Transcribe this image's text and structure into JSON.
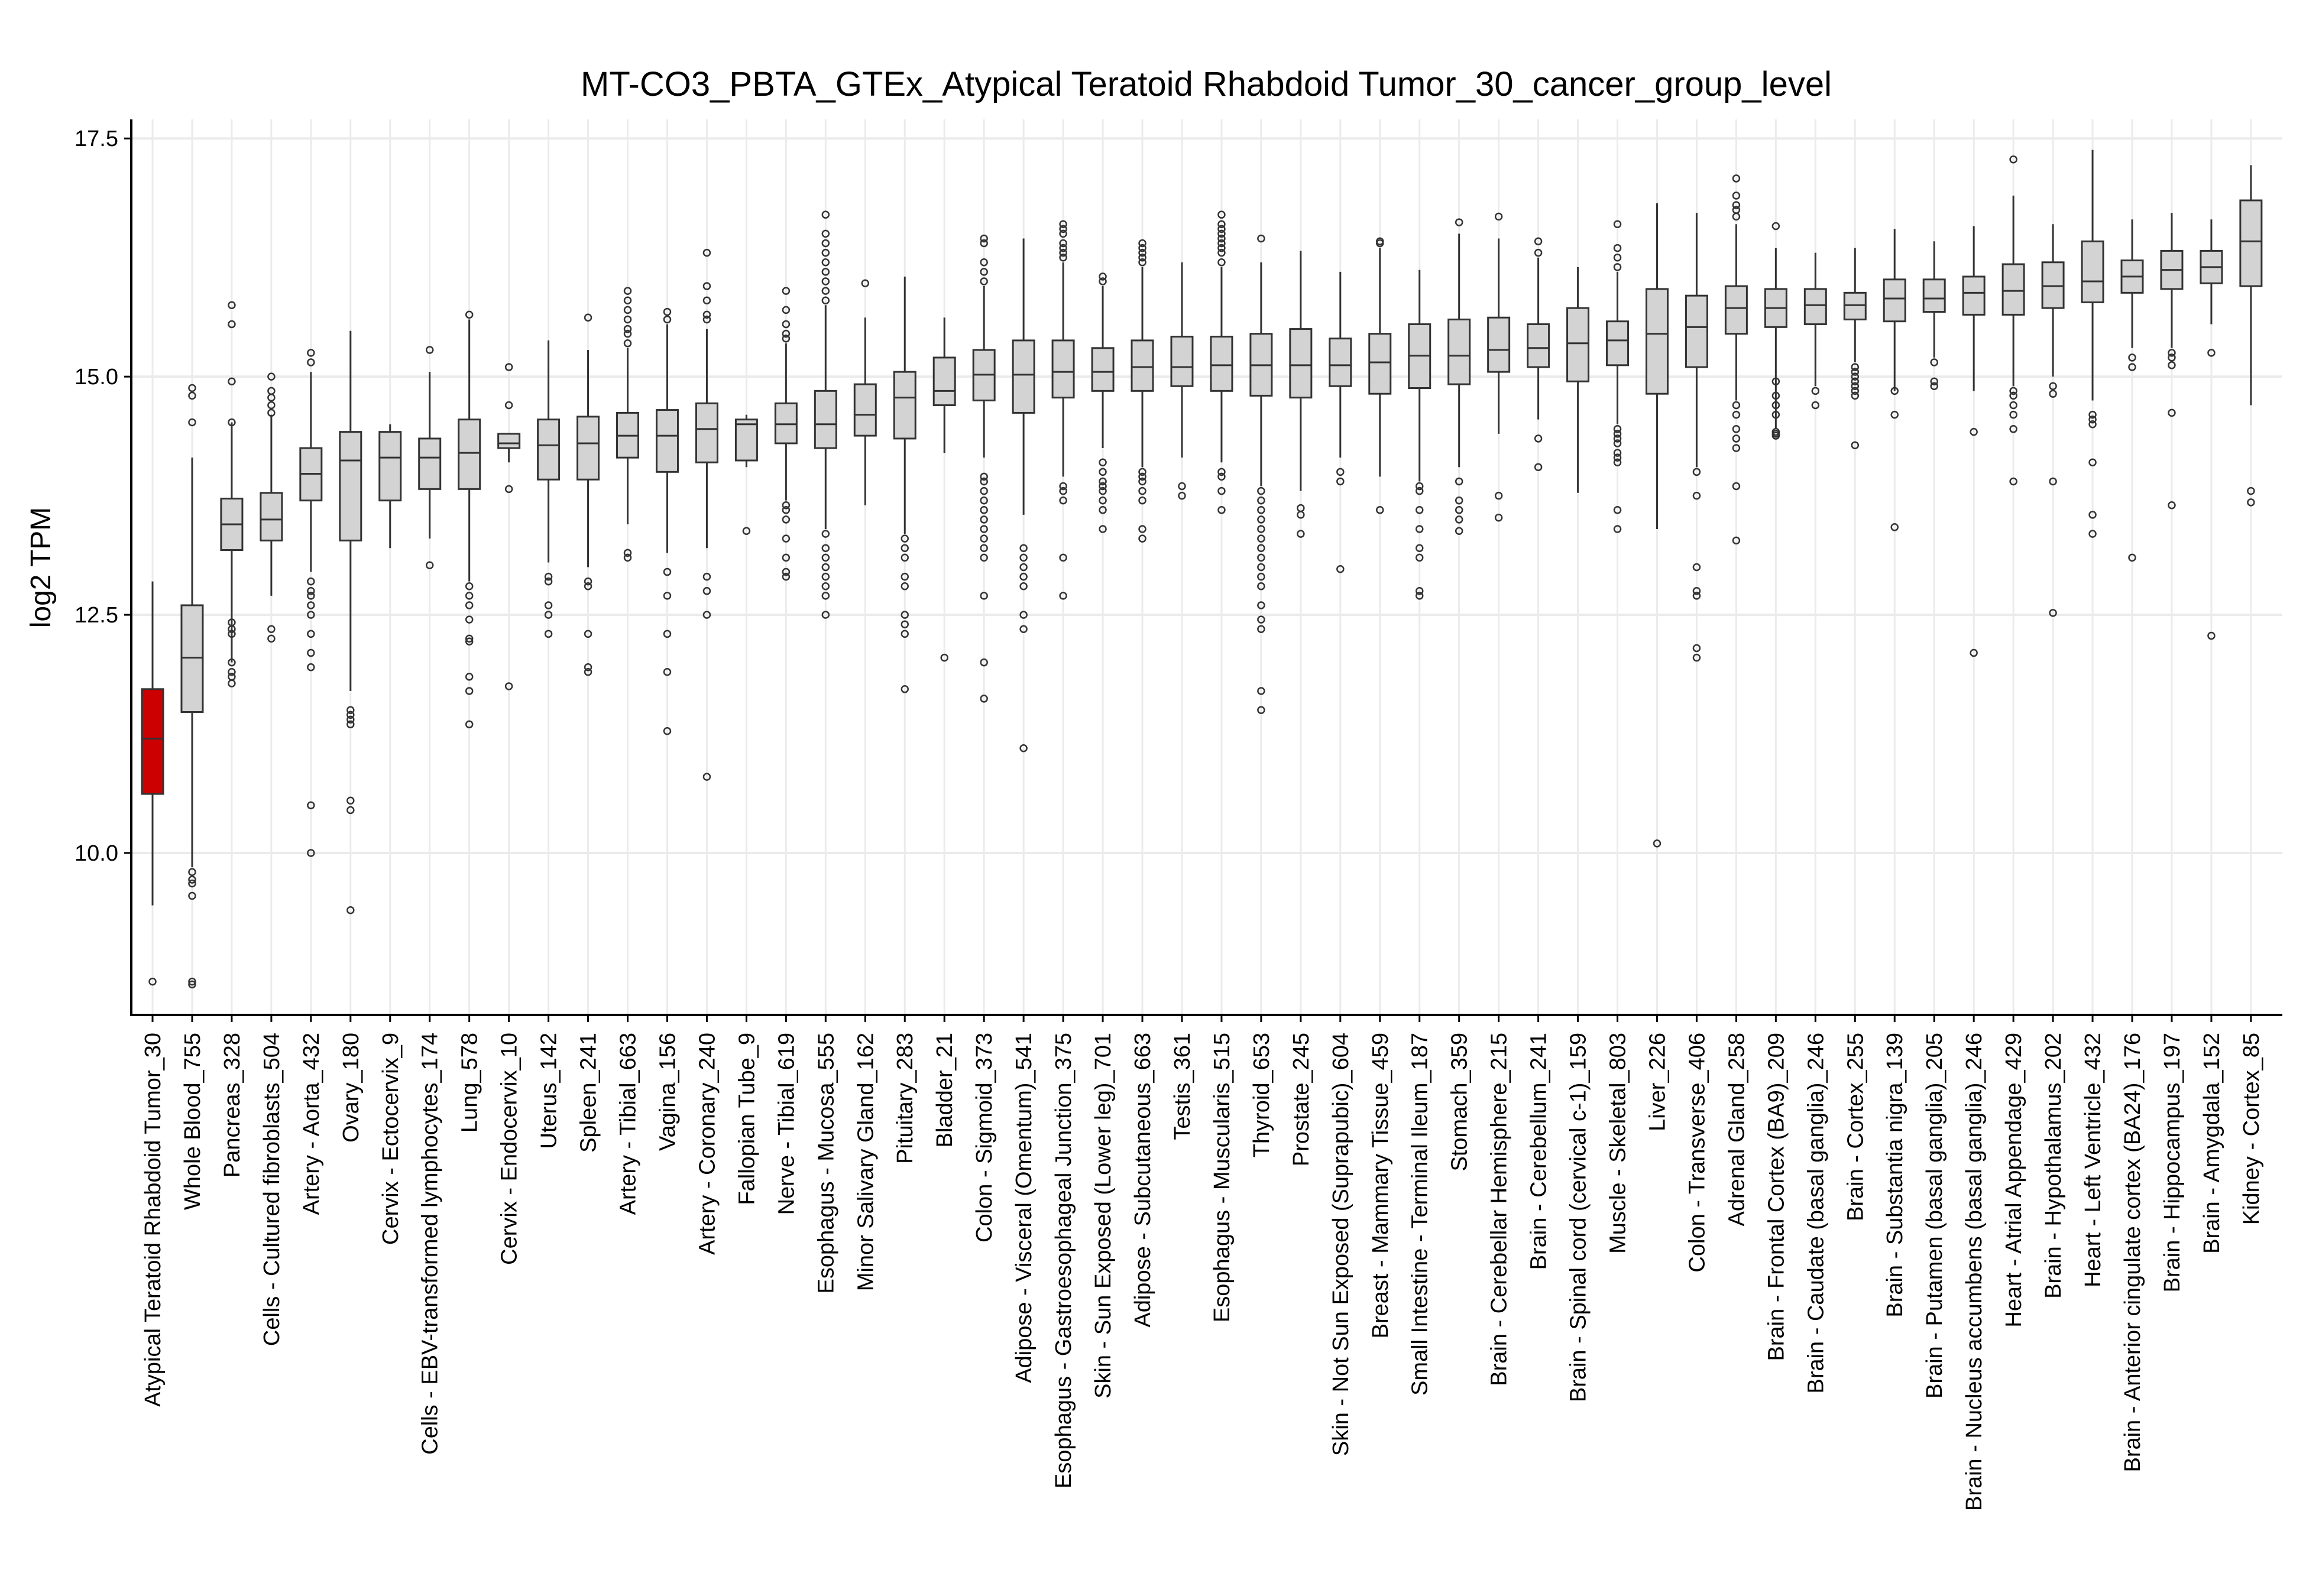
{
  "colors": {
    "box_fill": "#d3d3d3",
    "highlight_fill": "#cc0000",
    "grid": "#ebebeb",
    "stroke": "#333333"
  },
  "chart_data": {
    "type": "box",
    "title": "MT-CO3_PBTA_GTEx_Atypical Teratoid Rhabdoid Tumor_30_cancer_group_level",
    "xlabel": "",
    "ylabel": "log2 TPM",
    "ylim": [
      8.3,
      17.7
    ],
    "yticks": [
      10.0,
      12.5,
      15.0,
      17.5
    ],
    "ytick_labels": [
      "10.0",
      "12.5",
      "15.0",
      "17.5"
    ],
    "grid": true,
    "legend": "none",
    "highlight_index": 0,
    "categories": [
      "Atypical Teratoid Rhabdoid Tumor_30",
      "Whole Blood_755",
      "Pancreas_328",
      "Cells - Cultured fibroblasts_504",
      "Artery - Aorta_432",
      "Ovary_180",
      "Cervix - Ectocervix_9",
      "Cells - EBV-transformed lymphocytes_174",
      "Lung_578",
      "Cervix - Endocervix_10",
      "Uterus_142",
      "Spleen_241",
      "Artery - Tibial_663",
      "Vagina_156",
      "Artery - Coronary_240",
      "Fallopian Tube_9",
      "Nerve - Tibial_619",
      "Esophagus - Mucosa_555",
      "Minor Salivary Gland_162",
      "Pituitary_283",
      "Bladder_21",
      "Colon - Sigmoid_373",
      "Adipose - Visceral (Omentum)_541",
      "Esophagus - Gastroesophageal Junction_375",
      "Skin - Sun Exposed (Lower leg)_701",
      "Adipose - Subcutaneous_663",
      "Testis_361",
      "Esophagus - Muscularis_515",
      "Thyroid_653",
      "Prostate_245",
      "Skin - Not Sun Exposed (Suprapubic)_604",
      "Breast - Mammary Tissue_459",
      "Small Intestine - Terminal Ileum_187",
      "Stomach_359",
      "Brain - Cerebellar Hemisphere_215",
      "Brain - Cerebellum_241",
      "Brain - Spinal cord (cervical c-1)_159",
      "Muscle - Skeletal_803",
      "Liver_226",
      "Colon - Transverse_406",
      "Adrenal Gland_258",
      "Brain - Frontal Cortex (BA9)_209",
      "Brain - Caudate (basal ganglia)_246",
      "Brain - Cortex_255",
      "Brain - Substantia nigra_139",
      "Brain - Putamen (basal ganglia)_205",
      "Brain - Nucleus accumbens (basal ganglia)_246",
      "Heart - Atrial Appendage_429",
      "Brain - Hypothalamus_202",
      "Heart - Left Ventricle_432",
      "Brain - Anterior cingulate cortex (BA24)_176",
      "Brain - Hippocampus_197",
      "Brain - Amygdala_152",
      "Kidney - Cortex_85"
    ],
    "boxes": [
      {
        "whislo": 9.45,
        "q1": 10.62,
        "med": 11.2,
        "q3": 11.72,
        "whishi": 12.85,
        "fliers": [
          8.65
        ]
      },
      {
        "whislo": 9.85,
        "q1": 11.48,
        "med": 12.05,
        "q3": 12.6,
        "whishi": 14.15,
        "fliers": [
          9.8,
          9.72,
          9.68,
          9.55,
          8.65,
          8.62,
          14.52,
          14.8,
          14.88
        ]
      },
      {
        "whislo": 12.0,
        "q1": 13.18,
        "med": 13.45,
        "q3": 13.72,
        "whishi": 14.52,
        "fliers": [
          11.78,
          11.85,
          11.9,
          12.0,
          12.3,
          12.35,
          12.42,
          14.52,
          14.95,
          15.55,
          15.75
        ]
      },
      {
        "whislo": 12.7,
        "q1": 13.28,
        "med": 13.5,
        "q3": 13.78,
        "whishi": 14.6,
        "fliers": [
          12.25,
          12.35,
          14.62,
          14.7,
          14.78,
          14.85,
          15.0
        ]
      },
      {
        "whislo": 12.95,
        "q1": 13.7,
        "med": 13.98,
        "q3": 14.25,
        "whishi": 15.05,
        "fliers": [
          12.85,
          12.75,
          12.7,
          12.6,
          12.5,
          12.3,
          12.1,
          11.95,
          10.5,
          10.0,
          15.15,
          15.25
        ]
      },
      {
        "whislo": 11.7,
        "q1": 13.28,
        "med": 14.12,
        "q3": 14.42,
        "whishi": 15.48,
        "fliers": [
          11.5,
          11.45,
          11.4,
          11.35,
          10.55,
          10.45,
          9.4
        ]
      },
      {
        "whislo": 13.2,
        "q1": 13.7,
        "med": 14.15,
        "q3": 14.42,
        "whishi": 14.5,
        "fliers": []
      },
      {
        "whislo": 13.3,
        "q1": 13.82,
        "med": 14.15,
        "q3": 14.35,
        "whishi": 15.05,
        "fliers": [
          13.02,
          15.28
        ]
      },
      {
        "whislo": 12.85,
        "q1": 13.82,
        "med": 14.2,
        "q3": 14.55,
        "whishi": 15.6,
        "fliers": [
          12.8,
          12.7,
          12.6,
          12.45,
          12.25,
          12.22,
          11.85,
          11.7,
          11.35,
          15.65
        ]
      },
      {
        "whislo": 14.1,
        "q1": 14.25,
        "med": 14.3,
        "q3": 14.4,
        "whishi": 14.4,
        "fliers": [
          13.82,
          11.75,
          14.7,
          15.1
        ]
      },
      {
        "whislo": 13.05,
        "q1": 13.92,
        "med": 14.28,
        "q3": 14.55,
        "whishi": 15.38,
        "fliers": [
          12.9,
          12.85,
          12.6,
          12.5,
          12.3
        ]
      },
      {
        "whislo": 13.0,
        "q1": 13.92,
        "med": 14.3,
        "q3": 14.58,
        "whishi": 15.28,
        "fliers": [
          12.85,
          12.8,
          12.3,
          11.95,
          11.9,
          15.62
        ]
      },
      {
        "whislo": 13.45,
        "q1": 14.15,
        "med": 14.38,
        "q3": 14.62,
        "whishi": 15.3,
        "fliers": [
          13.15,
          13.1,
          15.35,
          15.45,
          15.5,
          15.6,
          15.7,
          15.8,
          15.9
        ]
      },
      {
        "whislo": 13.15,
        "q1": 14.0,
        "med": 14.38,
        "q3": 14.65,
        "whishi": 15.55,
        "fliers": [
          12.95,
          12.7,
          12.3,
          11.9,
          11.28,
          15.6,
          15.68
        ]
      },
      {
        "whislo": 13.2,
        "q1": 14.1,
        "med": 14.45,
        "q3": 14.72,
        "whishi": 15.5,
        "fliers": [
          12.9,
          12.75,
          12.5,
          10.8,
          15.6,
          15.65,
          15.8,
          15.95,
          16.3
        ]
      },
      {
        "whislo": 14.05,
        "q1": 14.12,
        "med": 14.5,
        "q3": 14.55,
        "whishi": 14.6,
        "fliers": [
          13.38
        ]
      },
      {
        "whislo": 13.7,
        "q1": 14.3,
        "med": 14.5,
        "q3": 14.72,
        "whishi": 15.35,
        "fliers": [
          13.65,
          13.6,
          13.5,
          13.3,
          13.1,
          12.95,
          12.9,
          15.4,
          15.45,
          15.55,
          15.7,
          15.9
        ]
      },
      {
        "whislo": 13.4,
        "q1": 14.25,
        "med": 14.5,
        "q3": 14.85,
        "whishi": 15.75,
        "fliers": [
          13.35,
          13.2,
          13.1,
          13.0,
          12.9,
          12.8,
          12.7,
          12.5,
          15.8,
          15.9,
          16.0,
          16.1,
          16.2,
          16.3,
          16.4,
          16.5,
          16.7
        ]
      },
      {
        "whislo": 13.65,
        "q1": 14.38,
        "med": 14.6,
        "q3": 14.92,
        "whishi": 15.62,
        "fliers": [
          15.98
        ]
      },
      {
        "whislo": 13.35,
        "q1": 14.35,
        "med": 14.78,
        "q3": 15.05,
        "whishi": 16.05,
        "fliers": [
          13.3,
          13.2,
          13.1,
          12.9,
          12.8,
          12.5,
          12.4,
          12.3,
          11.72
        ]
      },
      {
        "whislo": 14.2,
        "q1": 14.7,
        "med": 14.85,
        "q3": 15.2,
        "whishi": 15.62,
        "fliers": [
          12.05
        ]
      },
      {
        "whislo": 14.15,
        "q1": 14.75,
        "med": 15.02,
        "q3": 15.28,
        "whishi": 15.95,
        "fliers": [
          13.95,
          13.9,
          13.8,
          13.7,
          13.6,
          13.5,
          13.4,
          13.3,
          13.2,
          13.1,
          12.7,
          12.0,
          11.62,
          16.0,
          16.1,
          16.2,
          16.4,
          16.45
        ]
      },
      {
        "whislo": 13.55,
        "q1": 14.62,
        "med": 15.02,
        "q3": 15.38,
        "whishi": 16.45,
        "fliers": [
          13.2,
          13.1,
          13.0,
          12.9,
          12.8,
          12.5,
          12.35,
          11.1
        ]
      },
      {
        "whislo": 13.95,
        "q1": 14.78,
        "med": 15.05,
        "q3": 15.38,
        "whishi": 16.2,
        "fliers": [
          13.85,
          13.8,
          13.7,
          13.1,
          12.7,
          16.25,
          16.3,
          16.35,
          16.4,
          16.5,
          16.55,
          16.6
        ]
      },
      {
        "whislo": 14.25,
        "q1": 14.85,
        "med": 15.05,
        "q3": 15.3,
        "whishi": 15.95,
        "fliers": [
          14.1,
          14.0,
          13.9,
          13.85,
          13.8,
          13.7,
          13.6,
          13.4,
          16.0,
          16.05
        ]
      },
      {
        "whislo": 14.05,
        "q1": 14.85,
        "med": 15.1,
        "q3": 15.38,
        "whishi": 16.15,
        "fliers": [
          14.0,
          13.95,
          13.9,
          13.8,
          13.7,
          13.4,
          13.3,
          16.2,
          16.25,
          16.3,
          16.35,
          16.4
        ]
      },
      {
        "whislo": 14.15,
        "q1": 14.9,
        "med": 15.1,
        "q3": 15.42,
        "whishi": 16.2,
        "fliers": [
          13.85,
          13.75
        ]
      },
      {
        "whislo": 14.1,
        "q1": 14.85,
        "med": 15.12,
        "q3": 15.42,
        "whishi": 16.15,
        "fliers": [
          14.0,
          13.95,
          13.8,
          13.6,
          16.2,
          16.3,
          16.35,
          16.4,
          16.45,
          16.5,
          16.55,
          16.6,
          16.7
        ]
      },
      {
        "whislo": 13.85,
        "q1": 14.8,
        "med": 15.12,
        "q3": 15.45,
        "whishi": 16.2,
        "fliers": [
          13.8,
          13.7,
          13.6,
          13.5,
          13.4,
          13.3,
          13.2,
          13.1,
          13.0,
          12.9,
          12.8,
          12.6,
          12.45,
          12.35,
          11.7,
          11.5,
          16.45
        ]
      },
      {
        "whislo": 13.8,
        "q1": 14.78,
        "med": 15.12,
        "q3": 15.5,
        "whishi": 16.32,
        "fliers": [
          13.62,
          13.55,
          13.35
        ]
      },
      {
        "whislo": 14.15,
        "q1": 14.9,
        "med": 15.12,
        "q3": 15.4,
        "whishi": 16.1,
        "fliers": [
          14.0,
          13.9,
          12.98
        ]
      },
      {
        "whislo": 13.95,
        "q1": 14.82,
        "med": 15.15,
        "q3": 15.45,
        "whishi": 16.35,
        "fliers": [
          13.6,
          16.4,
          16.42
        ]
      },
      {
        "whislo": 13.9,
        "q1": 14.88,
        "med": 15.22,
        "q3": 15.55,
        "whishi": 16.12,
        "fliers": [
          13.85,
          13.8,
          13.6,
          13.4,
          13.2,
          13.1,
          12.75,
          12.7
        ]
      },
      {
        "whislo": 14.05,
        "q1": 14.92,
        "med": 15.22,
        "q3": 15.6,
        "whishi": 16.5,
        "fliers": [
          13.9,
          13.7,
          13.6,
          13.5,
          13.38,
          16.62
        ]
      },
      {
        "whislo": 14.4,
        "q1": 15.05,
        "med": 15.28,
        "q3": 15.62,
        "whishi": 16.45,
        "fliers": [
          13.75,
          13.52,
          16.68
        ]
      },
      {
        "whislo": 14.55,
        "q1": 15.1,
        "med": 15.3,
        "q3": 15.55,
        "whishi": 16.25,
        "fliers": [
          14.35,
          14.05,
          16.3,
          16.42
        ]
      },
      {
        "whislo": 13.78,
        "q1": 14.95,
        "med": 15.35,
        "q3": 15.72,
        "whishi": 16.15,
        "fliers": []
      },
      {
        "whislo": 14.5,
        "q1": 15.12,
        "med": 15.38,
        "q3": 15.58,
        "whishi": 16.1,
        "fliers": [
          14.45,
          14.4,
          14.35,
          14.3,
          14.2,
          14.15,
          14.1,
          13.6,
          13.4,
          16.15,
          16.25,
          16.35,
          16.6
        ]
      },
      {
        "whislo": 13.4,
        "q1": 14.82,
        "med": 15.45,
        "q3": 15.92,
        "whishi": 16.82,
        "fliers": [
          10.1
        ]
      },
      {
        "whislo": 14.05,
        "q1": 15.1,
        "med": 15.52,
        "q3": 15.85,
        "whishi": 16.72,
        "fliers": [
          14.0,
          13.75,
          13.0,
          12.75,
          12.7,
          12.15,
          12.05
        ]
      },
      {
        "whislo": 14.75,
        "q1": 15.45,
        "med": 15.72,
        "q3": 15.95,
        "whishi": 16.6,
        "fliers": [
          14.7,
          14.6,
          14.45,
          14.35,
          14.25,
          13.85,
          13.28,
          16.68,
          16.75,
          16.8,
          16.9,
          17.08
        ]
      },
      {
        "whislo": 14.45,
        "q1": 15.52,
        "med": 15.72,
        "q3": 15.92,
        "whishi": 16.35,
        "fliers": [
          14.95,
          14.8,
          14.7,
          14.6,
          14.42,
          14.4,
          14.38,
          16.58
        ]
      },
      {
        "whislo": 14.9,
        "q1": 15.55,
        "med": 15.75,
        "q3": 15.92,
        "whishi": 16.3,
        "fliers": [
          14.85,
          14.7
        ]
      },
      {
        "whislo": 15.15,
        "q1": 15.6,
        "med": 15.75,
        "q3": 15.88,
        "whishi": 16.35,
        "fliers": [
          15.1,
          15.05,
          15.0,
          14.95,
          14.9,
          14.85,
          14.8,
          14.28
        ]
      },
      {
        "whislo": 14.85,
        "q1": 15.58,
        "med": 15.82,
        "q3": 16.02,
        "whishi": 16.55,
        "fliers": [
          14.85,
          14.6,
          13.42
        ]
      },
      {
        "whislo": 15.2,
        "q1": 15.68,
        "med": 15.82,
        "q3": 16.02,
        "whishi": 16.42,
        "fliers": [
          15.15,
          14.95,
          14.9
        ]
      },
      {
        "whislo": 14.85,
        "q1": 15.65,
        "med": 15.88,
        "q3": 16.05,
        "whishi": 16.58,
        "fliers": [
          14.42,
          12.1
        ]
      },
      {
        "whislo": 14.9,
        "q1": 15.65,
        "med": 15.9,
        "q3": 16.18,
        "whishi": 16.9,
        "fliers": [
          14.85,
          14.8,
          14.7,
          14.6,
          14.45,
          13.9,
          17.28
        ]
      },
      {
        "whislo": 15.0,
        "q1": 15.72,
        "med": 15.95,
        "q3": 16.2,
        "whishi": 16.6,
        "fliers": [
          14.9,
          14.82,
          13.9,
          12.52
        ]
      },
      {
        "whislo": 14.75,
        "q1": 15.78,
        "med": 16.0,
        "q3": 16.42,
        "whishi": 17.38,
        "fliers": [
          14.6,
          14.55,
          14.5,
          14.1,
          13.55,
          13.35
        ]
      },
      {
        "whislo": 15.3,
        "q1": 15.88,
        "med": 16.05,
        "q3": 16.22,
        "whishi": 16.65,
        "fliers": [
          15.2,
          15.1,
          13.1
        ]
      },
      {
        "whislo": 15.3,
        "q1": 15.92,
        "med": 16.12,
        "q3": 16.32,
        "whishi": 16.72,
        "fliers": [
          15.25,
          15.2,
          15.12,
          14.62,
          13.65
        ]
      },
      {
        "whislo": 15.55,
        "q1": 15.98,
        "med": 16.15,
        "q3": 16.32,
        "whishi": 16.65,
        "fliers": [
          15.25,
          12.28
        ]
      },
      {
        "whislo": 14.7,
        "q1": 15.95,
        "med": 16.42,
        "q3": 16.85,
        "whishi": 17.22,
        "fliers": [
          13.8,
          13.68
        ]
      }
    ]
  }
}
